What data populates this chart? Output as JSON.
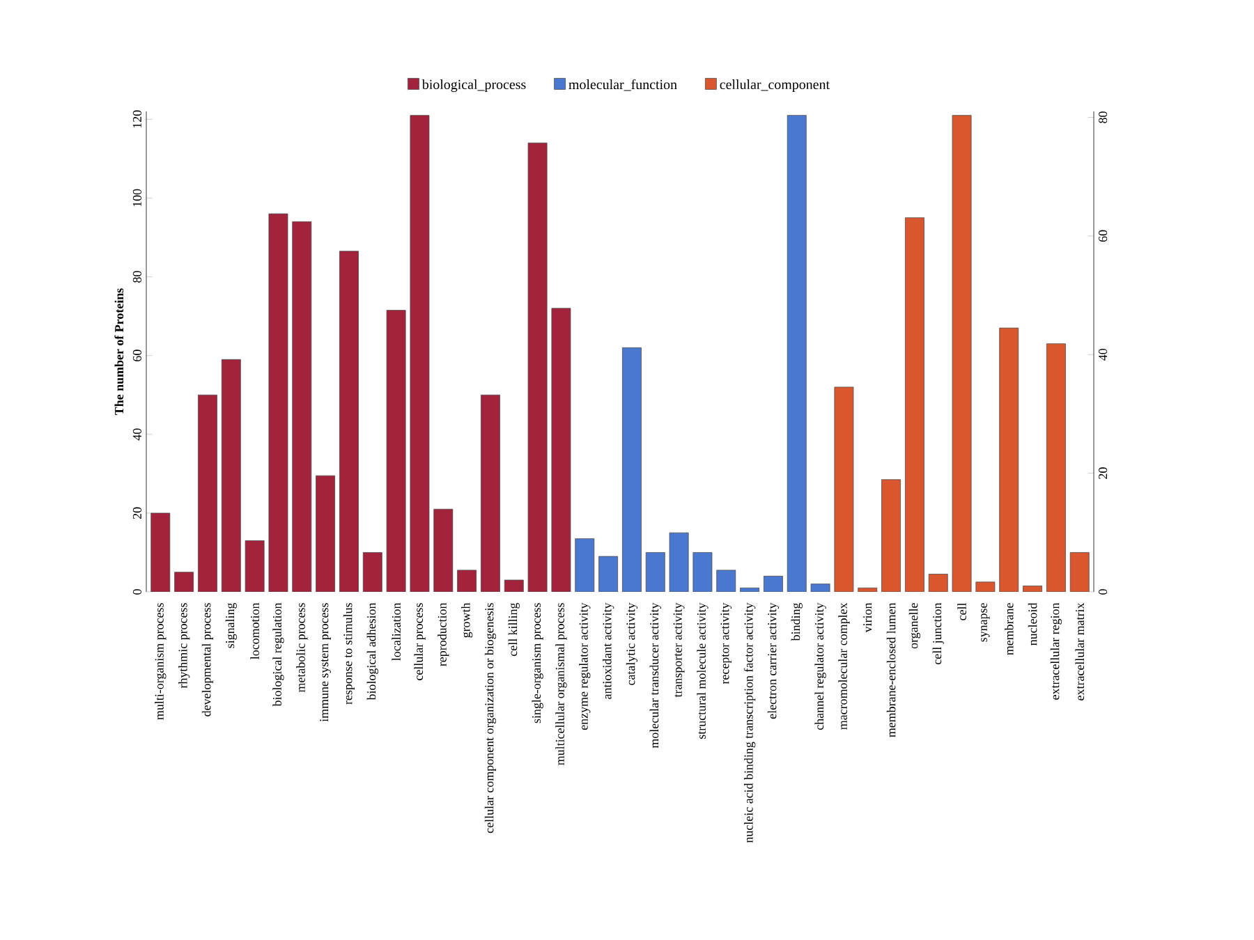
{
  "chart_data": {
    "type": "bar",
    "ylabel": "The number of Proteins",
    "categories": [
      "multi-organism process",
      "rhythmic process",
      "developmental process",
      "signaling",
      "locomotion",
      "biological regulation",
      "metabolic process",
      "immune system process",
      "response to stimulus",
      "biological adhesion",
      "localization",
      "cellular process",
      "reproduction",
      "growth",
      "cellular component organization or biogenesis",
      "cell killing",
      "single-organism process",
      "multicellular organismal process",
      "enzyme regulator activity",
      "antioxidant activity",
      "catalytic activity",
      "molecular transducer activity",
      "transporter activity",
      "structural molecule activity",
      "receptor activity",
      "nucleic acid binding transcription factor activity",
      "electron carrier activity",
      "binding",
      "channel regulator activity",
      "macromolecular complex",
      "virion",
      "membrane-enclosed lumen",
      "organelle",
      "cell junction",
      "cell",
      "synapse",
      "membrane",
      "nucleoid",
      "extracellular region",
      "extracellular matrix"
    ],
    "series": [
      {
        "name": "biological_process",
        "color": "#a3223c",
        "values": [
          20,
          5,
          50,
          59,
          13,
          96,
          94,
          29.5,
          86.5,
          10,
          71.5,
          121,
          21,
          5.5,
          50,
          3,
          114,
          72,
          null,
          null,
          null,
          null,
          null,
          null,
          null,
          null,
          null,
          null,
          null,
          null,
          null,
          null,
          null,
          null,
          null,
          null,
          null,
          null,
          null,
          null
        ]
      },
      {
        "name": "molecular_function",
        "color": "#4a78d0",
        "values": [
          null,
          null,
          null,
          null,
          null,
          null,
          null,
          null,
          null,
          null,
          null,
          null,
          null,
          null,
          null,
          null,
          null,
          null,
          13.5,
          9,
          62,
          10,
          15,
          10,
          5.5,
          1,
          4,
          121,
          2,
          null,
          null,
          null,
          null,
          null,
          null,
          null,
          null,
          null,
          null,
          null
        ]
      },
      {
        "name": "cellular_component",
        "color": "#d9562e",
        "values": [
          null,
          null,
          null,
          null,
          null,
          null,
          null,
          null,
          null,
          null,
          null,
          null,
          null,
          null,
          null,
          null,
          null,
          null,
          null,
          null,
          null,
          null,
          null,
          null,
          null,
          null,
          null,
          null,
          null,
          52,
          1,
          28.5,
          95,
          4.5,
          121,
          2.5,
          67,
          1.5,
          63,
          10
        ]
      }
    ],
    "ylim": [
      0,
      122
    ],
    "yticks": [
      0,
      20,
      40,
      60,
      80,
      100,
      120
    ],
    "y2lim": [
      0,
      81
    ],
    "y2ticks": [
      0,
      20,
      40,
      60,
      80
    ],
    "legend": "top",
    "grid": false
  }
}
